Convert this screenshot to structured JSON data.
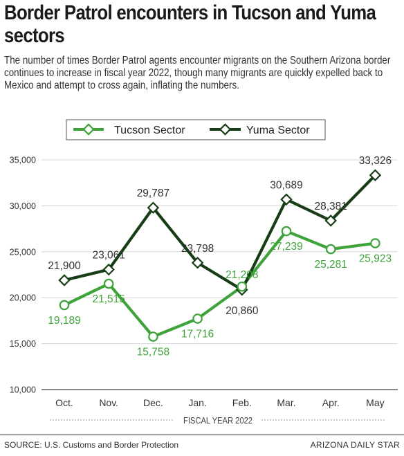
{
  "headline": "Border Patrol encounters in Tucson and Yuma sectors",
  "subtitle": "The number of times Border Patrol agents encounter migrants on the Southern Arizona border continues to increase in fiscal year 2022, though many migrants are quickly expelled back to Mexico and attempt to cross again, inflating the numbers.",
  "source": "SOURCE: U.S. Customs and Border Protection",
  "credit": "ARIZONA DAILY STAR",
  "colors": {
    "tucson": "#3da33a",
    "yuma": "#173d17",
    "grid": "#d6d6d6"
  },
  "chart_data": {
    "type": "line",
    "title": "Border Patrol encounters in Tucson and Yuma sectors",
    "xlabel": "FISCAL YEAR 2022",
    "ylabel": "",
    "categories": [
      "Oct.",
      "Nov.",
      "Dec.",
      "Jan.",
      "Feb.",
      "Mar.",
      "Apr.",
      "May"
    ],
    "ylim": [
      10000,
      35000
    ],
    "yticks": [
      10000,
      15000,
      20000,
      25000,
      30000,
      35000
    ],
    "ytick_labels": [
      "10,000",
      "15,000",
      "20,000",
      "25,000",
      "30,000",
      "35,000"
    ],
    "grid": true,
    "legend_position": "top",
    "series": [
      {
        "name": "Tucson Sector",
        "marker": "circle",
        "values": [
          19189,
          21515,
          15758,
          17716,
          21208,
          27239,
          25281,
          25923
        ],
        "labels": [
          "19,189",
          "21,515",
          "15,758",
          "17,716",
          "21,208",
          "27,239",
          "25,281",
          "25,923"
        ]
      },
      {
        "name": "Yuma Sector",
        "marker": "diamond",
        "values": [
          21900,
          23061,
          29787,
          23798,
          20860,
          30689,
          28381,
          33326
        ],
        "labels": [
          "21,900",
          "23,061",
          "29,787",
          "23,798",
          "20,860",
          "30,689",
          "28,381",
          "33,326"
        ]
      }
    ]
  }
}
